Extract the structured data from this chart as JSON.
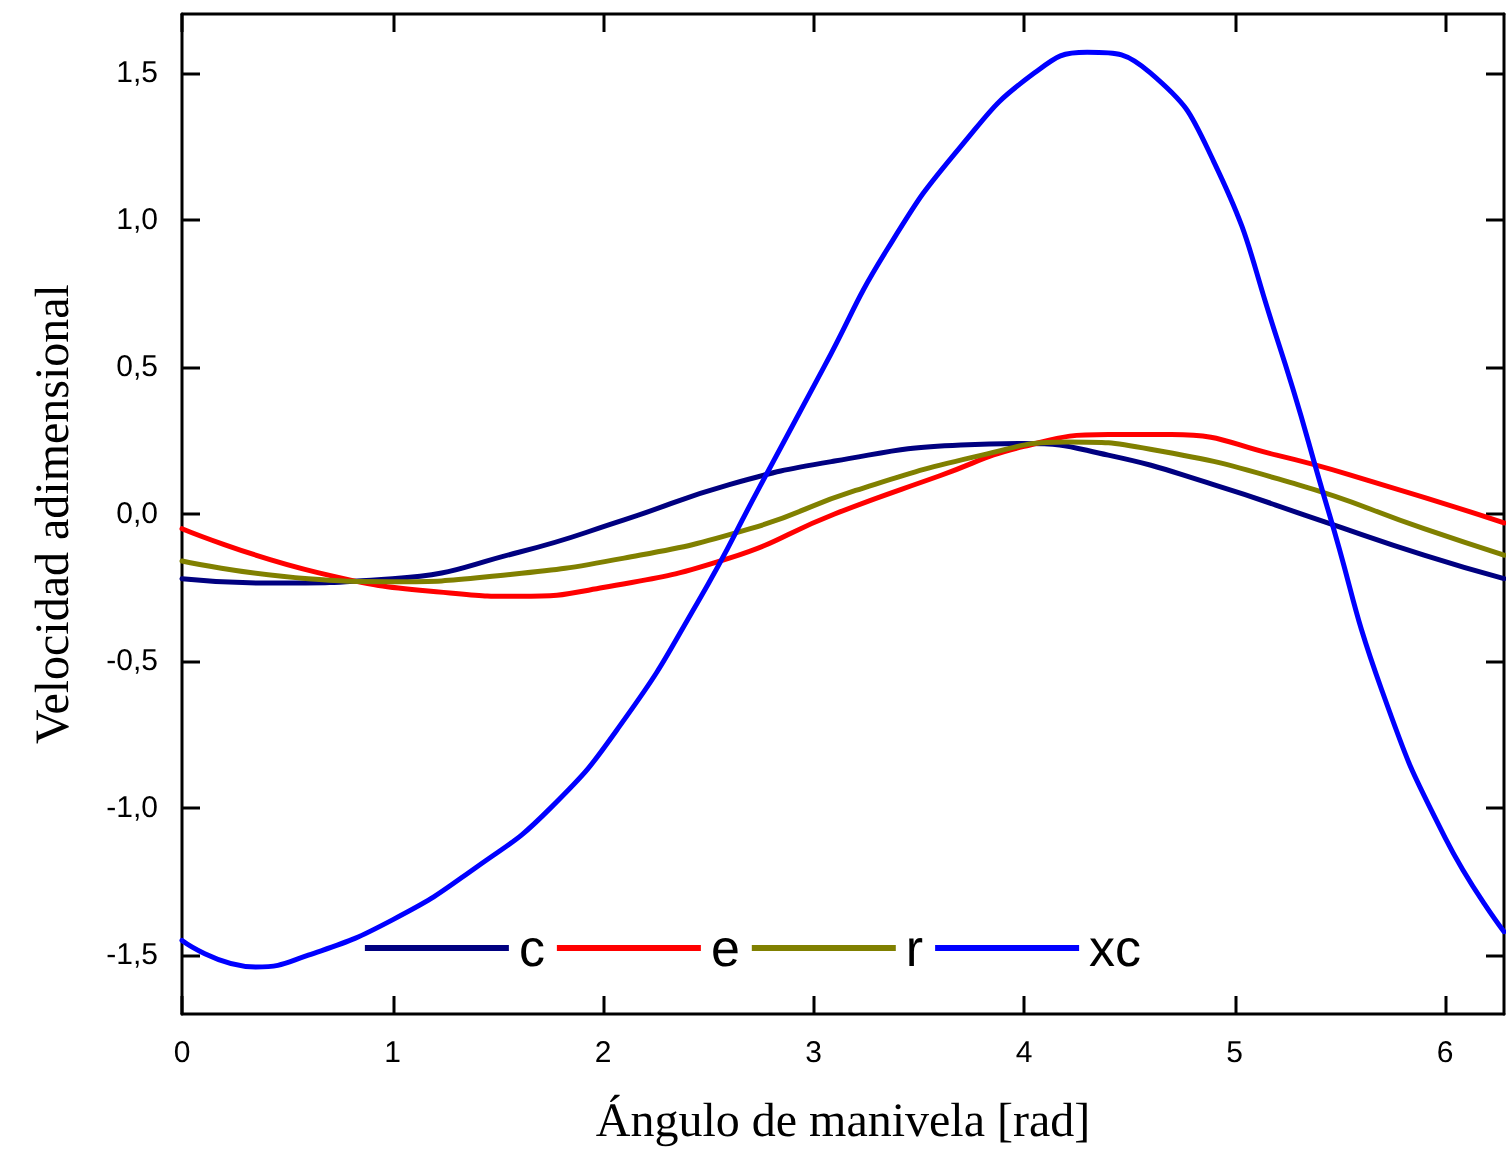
{
  "chart_data": {
    "type": "line",
    "xlabel": "Ángulo de manivela [rad]",
    "ylabel": "Velocidad adimensional",
    "xlim": [
      0,
      6.28
    ],
    "xticks": [
      0,
      1,
      2,
      3,
      4,
      5,
      6
    ],
    "ylim": [
      -1.7,
      1.7
    ],
    "yticks": [
      {
        "value": -1.5,
        "label": "-1,5"
      },
      {
        "value": -1,
        "label": "-1,0"
      },
      {
        "value": -0.5,
        "label": "-0,5"
      },
      {
        "value": 0,
        "label": "0,0"
      },
      {
        "value": 0.5,
        "label": "0,5"
      },
      {
        "value": 1,
        "label": "1,0"
      },
      {
        "value": 1.5,
        "label": "1,5"
      }
    ],
    "grid": false,
    "legend": "bottom",
    "marker": "none",
    "line_style": "solid",
    "series": [
      {
        "name": "c",
        "color": "#000080",
        "x": [
          0,
          0.4,
          1,
          1.6,
          2.1,
          2.6,
          3.1,
          3.7,
          4.0,
          4.4,
          4.9,
          5.4,
          5.9,
          6.28
        ],
        "values": [
          -0.22,
          -0.235,
          -0.22,
          -0.13,
          -0.02,
          0.1,
          0.18,
          0.235,
          0.24,
          0.2,
          0.1,
          -0.02,
          -0.14,
          -0.22
        ]
      },
      {
        "name": "e",
        "color": "#ff0000",
        "x": [
          0,
          0.65,
          1.3,
          1.6,
          2.0,
          2.6,
          3.1,
          3.6,
          4.0,
          4.4,
          4.7,
          5.2,
          5.7,
          6.28
        ],
        "values": [
          -0.05,
          -0.2,
          -0.27,
          -0.28,
          -0.25,
          -0.15,
          0.0,
          0.13,
          0.23,
          0.27,
          0.27,
          0.2,
          0.1,
          -0.03
        ]
      },
      {
        "name": "r",
        "color": "#808000",
        "x": [
          0,
          0.6,
          1.0,
          1.5,
          2.1,
          2.7,
          3.2,
          3.8,
          4.2,
          4.6,
          5.3,
          5.9,
          6.28
        ],
        "values": [
          -0.16,
          -0.22,
          -0.23,
          -0.21,
          -0.15,
          -0.05,
          0.08,
          0.2,
          0.245,
          0.22,
          0.1,
          -0.05,
          -0.14
        ]
      },
      {
        "name": "xc",
        "color": "#0000ff",
        "x": [
          0,
          0.35,
          0.6,
          1.0,
          1.4,
          1.75,
          2.1,
          2.45,
          2.75,
          3.05,
          3.35,
          3.7,
          4.05,
          4.3,
          4.6,
          4.9,
          5.2,
          5.45,
          5.7,
          6.0,
          6.28
        ],
        "values": [
          -1.45,
          -1.54,
          -1.5,
          -1.38,
          -1.2,
          -1.0,
          -0.7,
          -0.3,
          0.1,
          0.5,
          0.9,
          1.25,
          1.5,
          1.57,
          1.5,
          1.2,
          0.6,
          0,
          -0.6,
          -1.1,
          -1.42
        ]
      }
    ]
  }
}
